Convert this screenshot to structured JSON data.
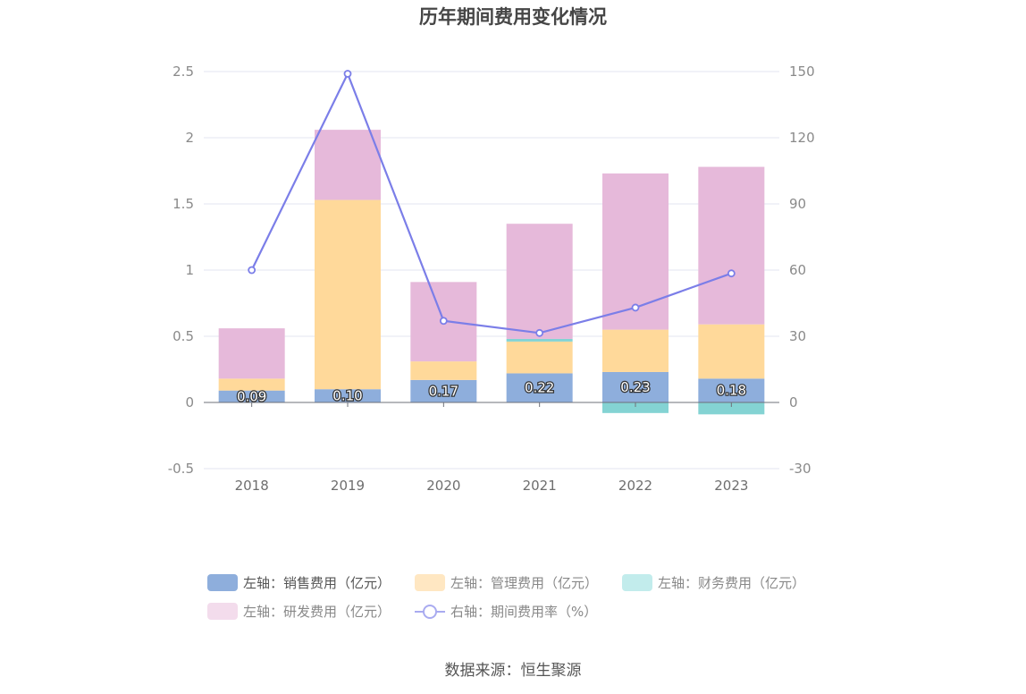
{
  "chart_data": {
    "type": "bar",
    "title": "历年期间费用变化情况",
    "categories": [
      "2018",
      "2019",
      "2020",
      "2021",
      "2022",
      "2023"
    ],
    "left_axis": {
      "ylim": [
        -0.5,
        2.5
      ],
      "ticks": [
        "-0.5",
        "0",
        "0.5",
        "1",
        "1.5",
        "2",
        "2.5"
      ]
    },
    "right_axis": {
      "ylim": [
        -30,
        150
      ],
      "ticks": [
        "-30",
        "0",
        "30",
        "60",
        "90",
        "120",
        "150"
      ]
    },
    "series": [
      {
        "name": "左轴：销售费用（亿元）",
        "axis": "left",
        "type": "bar",
        "color": "#8eaedc",
        "values": [
          0.09,
          0.1,
          0.17,
          0.22,
          0.23,
          0.18
        ],
        "labels": [
          "0.09",
          "0.10",
          "0.17",
          "0.22",
          "0.23",
          "0.18"
        ]
      },
      {
        "name": "左轴：管理费用（亿元）",
        "axis": "left",
        "type": "bar",
        "color": "#ffd99a",
        "values": [
          0.09,
          1.43,
          0.14,
          0.24,
          0.32,
          0.41
        ]
      },
      {
        "name": "左轴：财务费用（亿元）",
        "axis": "left",
        "type": "bar",
        "color": "#84d3d3",
        "values": [
          0.0,
          0.0,
          0.0,
          0.02,
          -0.08,
          -0.09
        ]
      },
      {
        "name": "左轴：研发费用（亿元）",
        "axis": "left",
        "type": "bar",
        "color": "#e6b9da",
        "values": [
          0.38,
          0.53,
          0.6,
          0.87,
          1.18,
          1.19
        ]
      },
      {
        "name": "右轴：期间费用率（%）",
        "axis": "right",
        "type": "line",
        "color": "#7b7ee8",
        "values": [
          60,
          149,
          37,
          31.5,
          43,
          58.5
        ]
      }
    ],
    "legend_position": "bottom",
    "grid": true
  },
  "legend_colors": {
    "sales": "#8eaedc",
    "admin": "#ffe7c2",
    "finance": "#c2ecec",
    "rnd": "#f3dcec",
    "rate": "#7b7ee8"
  },
  "source": "数据来源：恒生聚源"
}
